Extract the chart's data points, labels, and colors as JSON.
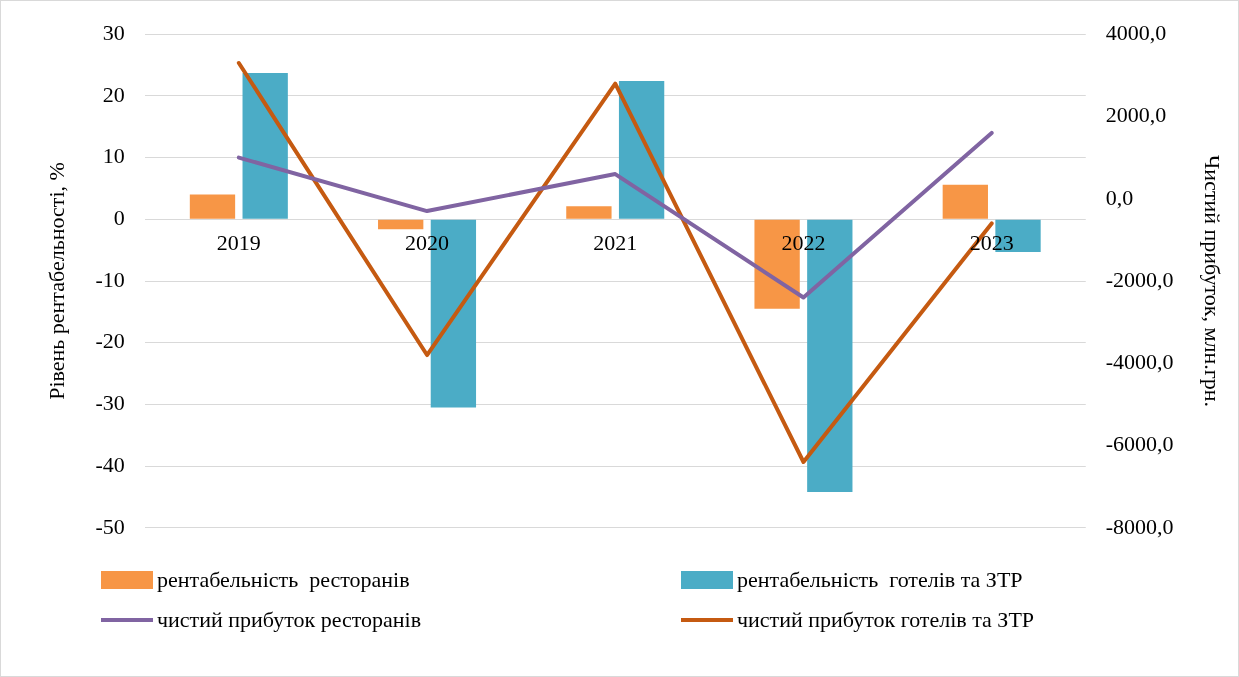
{
  "chart_data": {
    "type": "bar",
    "categories": [
      "2019",
      "2020",
      "2021",
      "2022",
      "2023"
    ],
    "ylabel": "Рівень рентабельності, %",
    "y2label": "Чистий прибуток, млн.грн.",
    "ylim": [
      -50,
      30
    ],
    "yticks": [
      -50,
      -40,
      -30,
      -20,
      -10,
      0,
      10,
      20,
      30
    ],
    "y2lim": [
      -8000,
      4000
    ],
    "y2ticks": [
      {
        "value": -8000,
        "label": "-8000,0"
      },
      {
        "value": -6000,
        "label": "-6000,0"
      },
      {
        "value": -4000,
        "label": "-4000,0"
      },
      {
        "value": -2000,
        "label": "-2000,0"
      },
      {
        "value": 0,
        "label": "0,0"
      },
      {
        "value": 2000,
        "label": "2000,0"
      },
      {
        "value": 4000,
        "label": "4000,0"
      }
    ],
    "grid": "y",
    "legend": "bottom",
    "series": [
      {
        "name": "рентабельність  ресторанів",
        "color": "#f79646",
        "values": [
          4.0,
          -1.6,
          2.1,
          -14.5,
          5.6
        ]
      },
      {
        "name": "рентабельність  готелів та ЗТР",
        "color": "#4bacc6",
        "values": [
          23.7,
          -30.5,
          22.4,
          -44.2,
          -5.3
        ]
      },
      {
        "name": "чистий прибуток ресторанів",
        "type": "line",
        "axis": "y2",
        "color": "#8064a2",
        "values": [
          1000,
          -300,
          600,
          -2400,
          1600
        ]
      },
      {
        "name": "чистий прибуток готелів та ЗТР",
        "type": "line",
        "axis": "y2",
        "color": "#c55a11",
        "values": [
          3300,
          -3800,
          2800,
          -6400,
          -600
        ]
      }
    ]
  }
}
